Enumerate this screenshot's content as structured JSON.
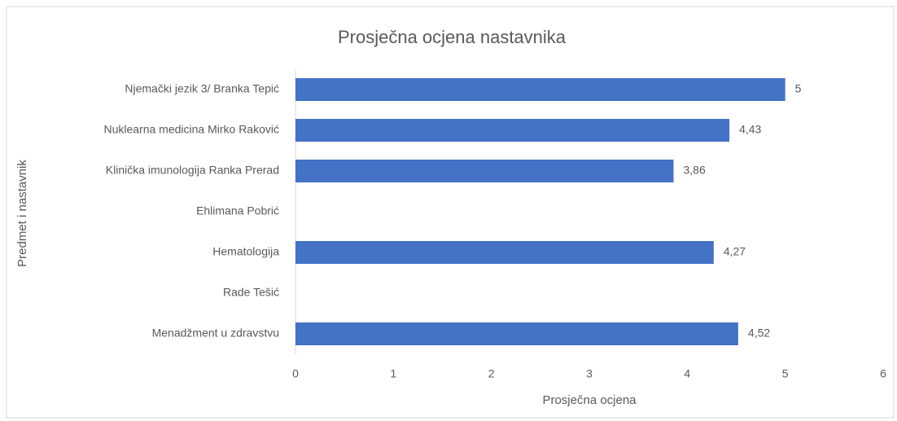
{
  "chart_data": {
    "type": "barh",
    "title": "Prosječna ocjena nastavnika",
    "x_label": "Prosječna ocjena",
    "y_label": "Predmet i nastavnik",
    "categories": [
      "Njemački jezik 3/ Branka Tepić",
      "Nuklearna medicina Mirko Raković",
      "Klinička imunologija Ranka Prerad",
      "Ehlimana Pobrić",
      "Hematologija",
      "Rade Tešić",
      "Menadžment u zdravstvu"
    ],
    "values": [
      5,
      4.43,
      3.86,
      null,
      4.27,
      null,
      4.52
    ],
    "value_labels": [
      "5",
      "4,43",
      "3,86",
      null,
      "4,27",
      null,
      "4,52"
    ],
    "color": "#4472c4",
    "xlim": [
      0,
      6
    ],
    "xticks": [
      0,
      1,
      2,
      3,
      4,
      5,
      6
    ],
    "grid": false
  }
}
